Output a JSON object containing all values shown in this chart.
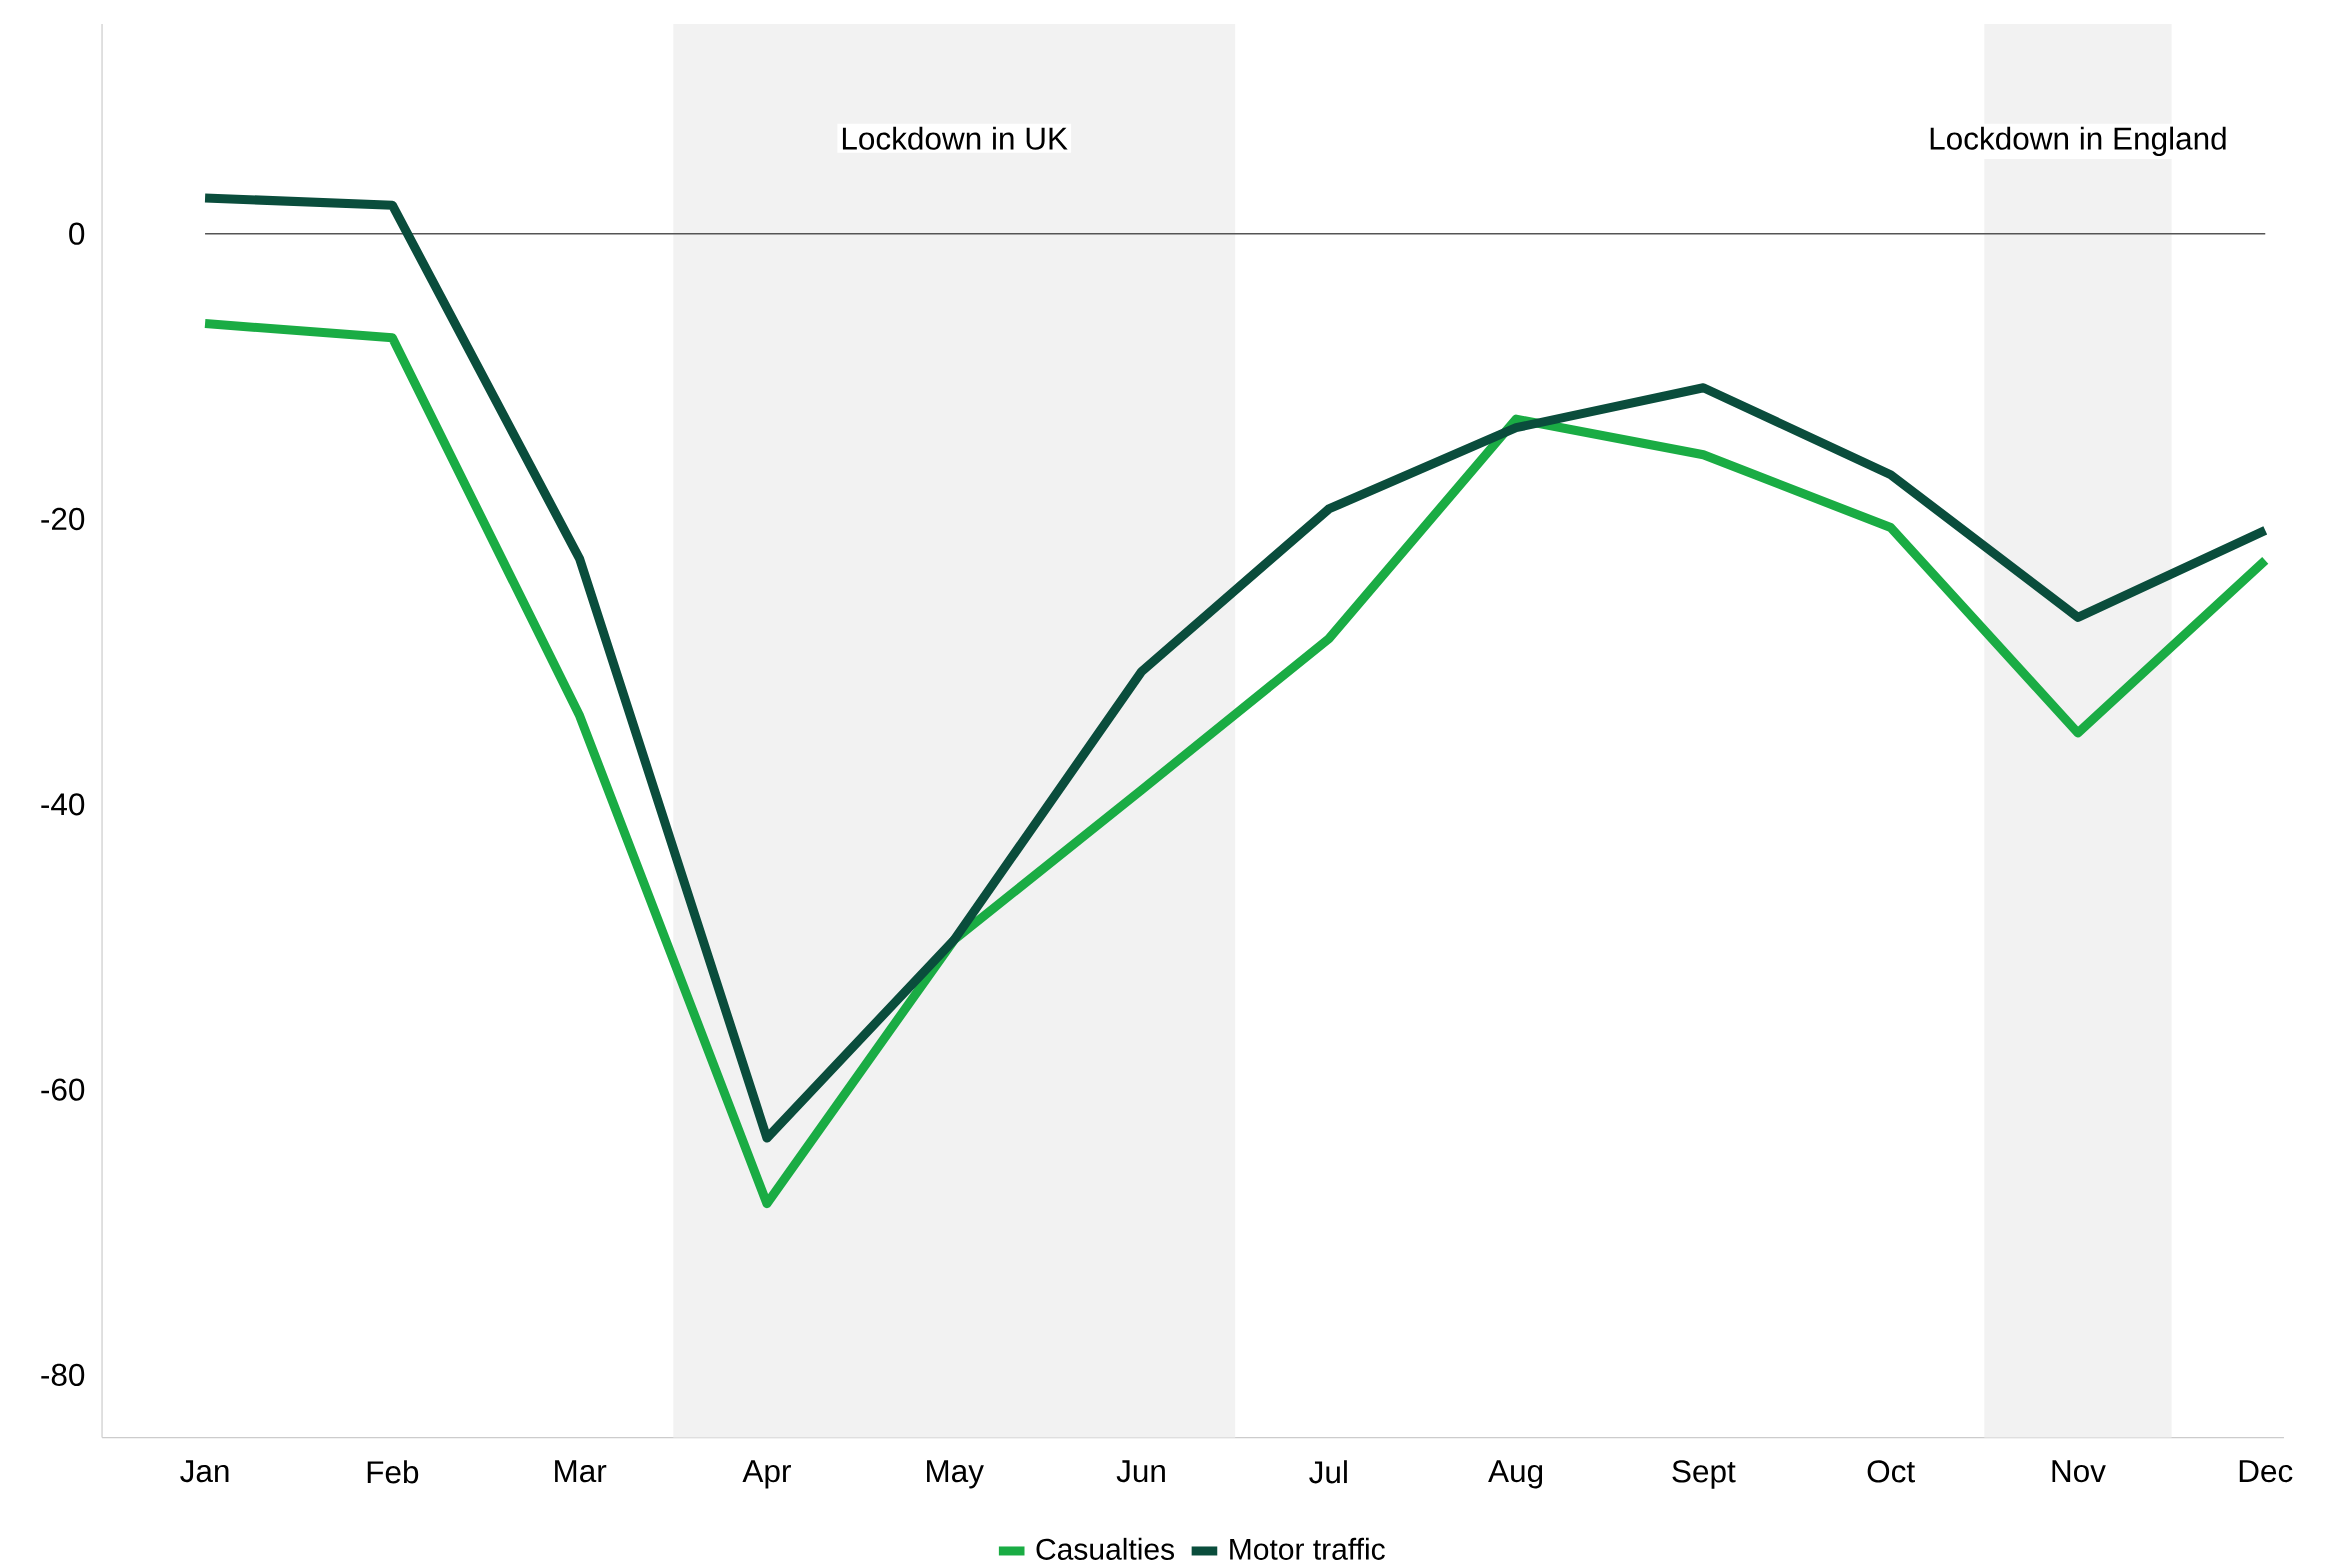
{
  "chart_data": {
    "type": "line",
    "categories": [
      "Jan",
      "Feb",
      "Mar",
      "Apr",
      "May",
      "Jun",
      "Jul",
      "Aug",
      "Sept",
      "Oct",
      "Nov",
      "Dec"
    ],
    "series": [
      {
        "name": "Casualties",
        "color": "#1aac44",
        "values": [
          -6.3,
          -7.3,
          -33.8,
          -68,
          -49.5,
          -39,
          -28.4,
          -13,
          -15.5,
          -20.6,
          -35,
          -22.9
        ]
      },
      {
        "name": "Motor traffic",
        "color": "#0a4d3c",
        "values": [
          2.5,
          2,
          -22.8,
          -63.4,
          -49.5,
          -30.7,
          -19.3,
          -13.6,
          -10.8,
          -16.9,
          -26.9,
          -20.8
        ]
      }
    ],
    "ylim": [
      -84.4,
      14.7
    ],
    "yticks": [
      -80,
      -60,
      -40,
      -20,
      0
    ],
    "ref_lines": [
      {
        "axis": "y",
        "value": 0,
        "color": "#555555"
      }
    ],
    "bands": [
      {
        "axis": "x",
        "from": "Apr",
        "to": "Jun",
        "label": "Lockdown in UK",
        "color": "#f2f2f2"
      },
      {
        "axis": "x",
        "from": "Nov",
        "to": "Nov",
        "label": "Lockdown in England",
        "color": "#f2f2f2"
      }
    ],
    "grid": false,
    "legend": "bottom",
    "marker": "none",
    "line_style": "solid"
  }
}
